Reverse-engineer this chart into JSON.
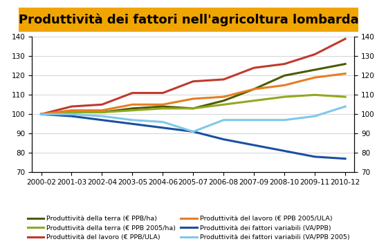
{
  "title": "Produttività dei fattori nell'agricoltura lombarda",
  "x_labels": [
    "2000-02",
    "2001-03",
    "2002-04",
    "2003-05",
    "2004-06",
    "2005-07",
    "2006-08",
    "2007-09",
    "2008-10",
    "2009-11",
    "2010-12"
  ],
  "series": [
    {
      "key": "terra_ppb",
      "label": "Produttività della terra (€ PPB/ha)",
      "color": "#4d5a00",
      "linewidth": 2.2,
      "values": [
        100,
        101,
        101,
        103,
        104,
        103,
        107,
        113,
        120,
        123,
        126
      ]
    },
    {
      "key": "terra_ppb2005",
      "label": "Produttività della terra (€ PPB 2005/ha)",
      "color": "#92a820",
      "linewidth": 2.2,
      "values": [
        100,
        101,
        101,
        102,
        103,
        103,
        105,
        107,
        109,
        110,
        109
      ]
    },
    {
      "key": "lavoro_ppb",
      "label": "Produttività del lavoro (€ PPB/ULA)",
      "color": "#c0392b",
      "linewidth": 2.2,
      "values": [
        100,
        104,
        105,
        111,
        111,
        117,
        118,
        124,
        126,
        131,
        139
      ]
    },
    {
      "key": "lavoro_ppb2005",
      "label": "Produttività del lavoro (€ PPB 2005/ULA)",
      "color": "#e67e22",
      "linewidth": 2.2,
      "values": [
        100,
        102,
        102,
        105,
        105,
        108,
        109,
        113,
        115,
        119,
        121
      ]
    },
    {
      "key": "fattori_va",
      "label": "Produttività dei fattori variabili (VA/PPB)",
      "color": "#1a4fa0",
      "linewidth": 2.2,
      "values": [
        100,
        99,
        97,
        95,
        93,
        91,
        87,
        84,
        81,
        78,
        77
      ]
    },
    {
      "key": "fattori_va2005",
      "label": "Produttività dei fattori variabili (VA/PPB 2005)",
      "color": "#7fc8e8",
      "linewidth": 2.2,
      "values": [
        100,
        100,
        99,
        97,
        96,
        91,
        97,
        97,
        97,
        99,
        104
      ]
    }
  ],
  "ylim": [
    70,
    140
  ],
  "yticks": [
    70,
    80,
    90,
    100,
    110,
    120,
    130,
    140
  ],
  "title_fontsize": 13,
  "title_bg": "#f0a500",
  "legend_fontsize": 6.8,
  "tick_fontsize": 7.5,
  "fig_width": 5.45,
  "fig_height": 3.56,
  "dpi": 100
}
